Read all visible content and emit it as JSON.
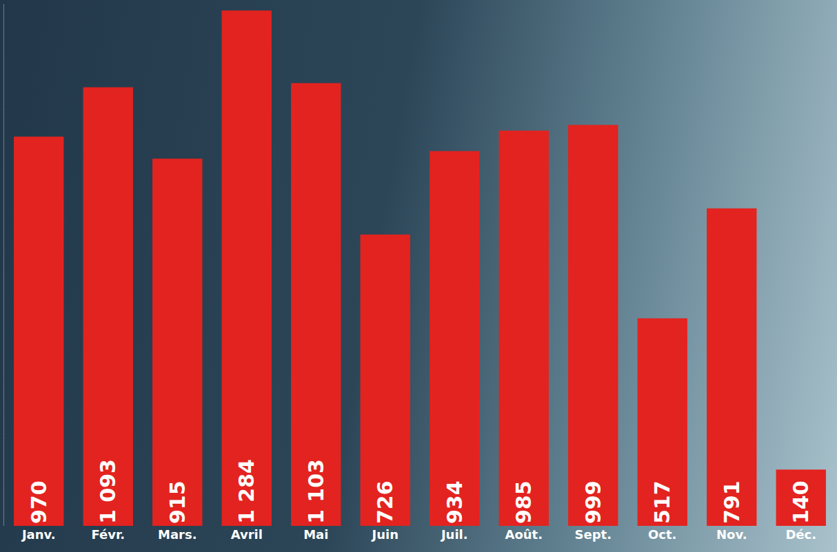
{
  "chart_data": {
    "type": "bar",
    "categories": [
      "Janv.",
      "Févr.",
      "Mars.",
      "Avril",
      "Mai",
      "Juin",
      "Juil.",
      "Août.",
      "Sept.",
      "Oct.",
      "Nov.",
      "Déc."
    ],
    "values": [
      970,
      1093,
      915,
      1284,
      1103,
      726,
      934,
      985,
      999,
      517,
      791,
      140
    ],
    "value_labels": [
      "970",
      "1 093",
      "915",
      "1 284",
      "1 103",
      "726",
      "934",
      "985",
      "999",
      "517",
      "791",
      "140"
    ],
    "color": "#e3231f",
    "ylim": [
      0,
      1300
    ],
    "grid": false,
    "data_labels": true,
    "tick_labels": "x"
  }
}
